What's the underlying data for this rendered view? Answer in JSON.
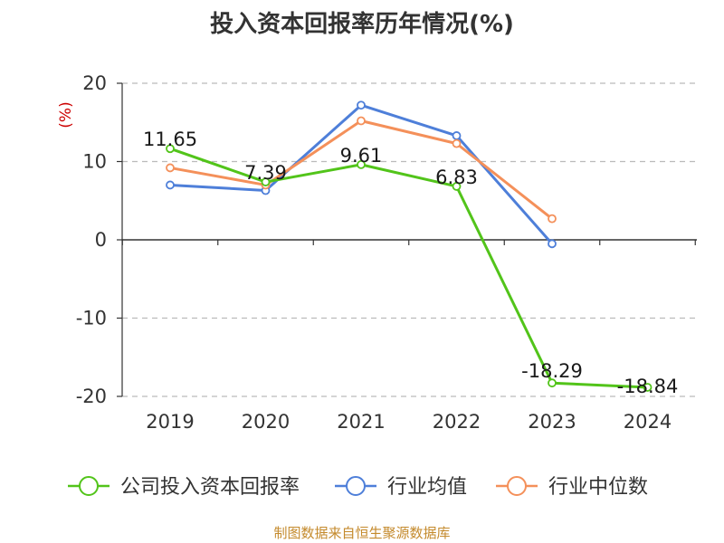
{
  "chart_data": {
    "type": "line",
    "title": "投入资本回报率历年情况(%)",
    "ylabel": "(%)",
    "xlabel": "",
    "categories": [
      "2019",
      "2020",
      "2021",
      "2022",
      "2023",
      "2024"
    ],
    "ylim": [
      -20,
      20
    ],
    "yticks": [
      20,
      10,
      0,
      -10,
      -20
    ],
    "grid": true,
    "legend_position": "bottom",
    "series": [
      {
        "name": "公司投入资本回报率",
        "color": "#52c41a",
        "values": [
          11.65,
          7.39,
          9.61,
          6.83,
          -18.29,
          -18.84
        ],
        "labels": [
          "11.65",
          "7.39",
          "9.61",
          "6.83",
          "-18.29",
          "-18.84"
        ]
      },
      {
        "name": "行业均值",
        "color": "#4e7fd9",
        "values": [
          7.0,
          6.3,
          17.2,
          13.3,
          -0.5,
          null
        ]
      },
      {
        "name": "行业中位数",
        "color": "#f4905a",
        "values": [
          9.2,
          7.0,
          15.2,
          12.3,
          2.7,
          null
        ]
      }
    ]
  },
  "source": "制图数据来自恒生聚源数据库"
}
